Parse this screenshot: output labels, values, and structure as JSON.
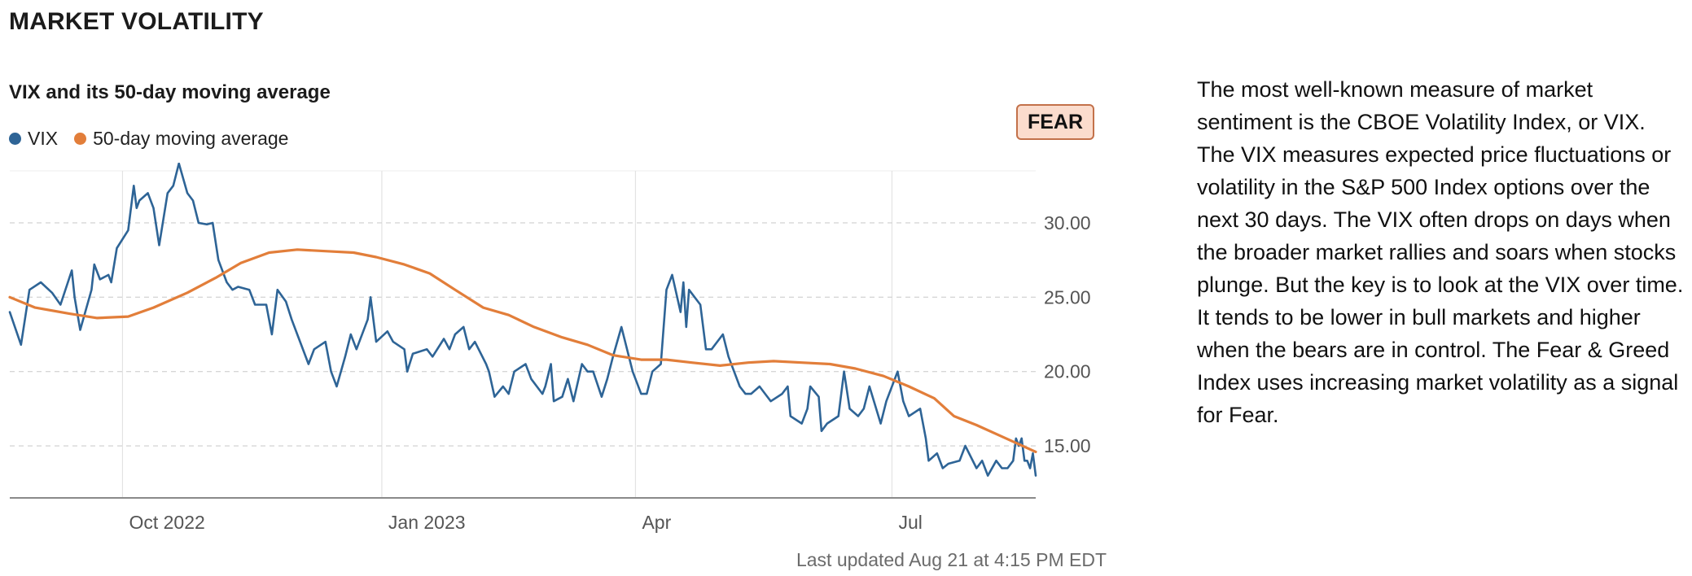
{
  "section_title": "MARKET VOLATILITY",
  "chart_title": "VIX and its 50-day moving average",
  "badge": {
    "label": "FEAR",
    "background": "#fbdccd",
    "border": "#c3714a"
  },
  "last_updated": "Last updated Aug 21 at 4:15 PM EDT",
  "description": "The most well-known measure of market sentiment is the CBOE Volatility Index, or VIX. The VIX measures expected price fluctuations or volatility in the S&P 500 Index options over the next 30 days. The VIX often drops on days when the broader market rallies and soars when stocks plunge. But the key is to look at the VIX over time. It tends to be lower in bull markets and higher when the bears are in control. The Fear & Greed Index uses increasing market volatility as a signal for Fear.",
  "chart_data": {
    "type": "line",
    "title": "VIX and its 50-day moving average",
    "x_range": [
      "2022-08-22",
      "2023-08-21"
    ],
    "ylim": [
      11.5,
      33.5
    ],
    "y_ticks": [
      15,
      20,
      25,
      30
    ],
    "y_tick_labels": [
      "15.00",
      "20.00",
      "25.00",
      "30.00"
    ],
    "x_ticks": [
      {
        "date": "2022-10-01",
        "label": "Oct 2022"
      },
      {
        "date": "2023-01-01",
        "label": "Jan 2023"
      },
      {
        "date": "2023-04-01",
        "label": "Apr"
      },
      {
        "date": "2023-07-01",
        "label": "Jul"
      }
    ],
    "grid": true,
    "legend_position": "top-left",
    "series": [
      {
        "name": "VIX",
        "color": "#2e6496",
        "points": [
          [
            "2022-08-22",
            24.0
          ],
          [
            "2022-08-26",
            21.8
          ],
          [
            "2022-08-29",
            25.5
          ],
          [
            "2022-09-02",
            26.0
          ],
          [
            "2022-09-06",
            25.3
          ],
          [
            "2022-09-09",
            24.5
          ],
          [
            "2022-09-13",
            26.8
          ],
          [
            "2022-09-14",
            25.0
          ],
          [
            "2022-09-16",
            22.8
          ],
          [
            "2022-09-20",
            25.5
          ],
          [
            "2022-09-21",
            27.2
          ],
          [
            "2022-09-23",
            26.2
          ],
          [
            "2022-09-26",
            26.5
          ],
          [
            "2022-09-27",
            26.0
          ],
          [
            "2022-09-29",
            28.3
          ],
          [
            "2022-10-03",
            29.5
          ],
          [
            "2022-10-05",
            32.5
          ],
          [
            "2022-10-06",
            31.0
          ],
          [
            "2022-10-07",
            31.5
          ],
          [
            "2022-10-10",
            32.0
          ],
          [
            "2022-10-12",
            31.0
          ],
          [
            "2022-10-14",
            28.5
          ],
          [
            "2022-10-17",
            32.0
          ],
          [
            "2022-10-19",
            32.5
          ],
          [
            "2022-10-21",
            34.0
          ],
          [
            "2022-10-24",
            32.0
          ],
          [
            "2022-10-26",
            31.5
          ],
          [
            "2022-10-28",
            30.0
          ],
          [
            "2022-10-31",
            29.9
          ],
          [
            "2022-11-02",
            30.0
          ],
          [
            "2022-11-04",
            27.5
          ],
          [
            "2022-11-07",
            26.0
          ],
          [
            "2022-11-09",
            25.5
          ],
          [
            "2022-11-11",
            25.7
          ],
          [
            "2022-11-15",
            25.5
          ],
          [
            "2022-11-17",
            24.5
          ],
          [
            "2022-11-21",
            24.5
          ],
          [
            "2022-11-23",
            22.5
          ],
          [
            "2022-11-25",
            25.5
          ],
          [
            "2022-11-28",
            24.7
          ],
          [
            "2022-11-30",
            23.5
          ],
          [
            "2022-12-02",
            22.5
          ],
          [
            "2022-12-06",
            20.5
          ],
          [
            "2022-12-08",
            21.5
          ],
          [
            "2022-12-12",
            22.0
          ],
          [
            "2022-12-14",
            20.0
          ],
          [
            "2022-12-16",
            19.0
          ],
          [
            "2022-12-19",
            21.0
          ],
          [
            "2022-12-21",
            22.5
          ],
          [
            "2022-12-23",
            21.5
          ],
          [
            "2022-12-27",
            23.5
          ],
          [
            "2022-12-28",
            25.0
          ],
          [
            "2022-12-30",
            22.0
          ],
          [
            "2023-01-03",
            22.7
          ],
          [
            "2023-01-05",
            22.0
          ],
          [
            "2023-01-09",
            21.5
          ],
          [
            "2023-01-10",
            20.0
          ],
          [
            "2023-01-12",
            21.2
          ],
          [
            "2023-01-17",
            21.5
          ],
          [
            "2023-01-19",
            21.0
          ],
          [
            "2023-01-23",
            22.2
          ],
          [
            "2023-01-25",
            21.5
          ],
          [
            "2023-01-27",
            22.5
          ],
          [
            "2023-01-30",
            23.0
          ],
          [
            "2023-02-01",
            21.5
          ],
          [
            "2023-02-03",
            22.0
          ],
          [
            "2023-02-07",
            20.5
          ],
          [
            "2023-02-08",
            20.0
          ],
          [
            "2023-02-10",
            18.3
          ],
          [
            "2023-02-13",
            19.0
          ],
          [
            "2023-02-15",
            18.5
          ],
          [
            "2023-02-17",
            20.0
          ],
          [
            "2023-02-21",
            20.5
          ],
          [
            "2023-02-23",
            19.5
          ],
          [
            "2023-02-27",
            18.5
          ],
          [
            "2023-02-28",
            19.0
          ],
          [
            "2023-03-02",
            20.5
          ],
          [
            "2023-03-03",
            18.0
          ],
          [
            "2023-03-06",
            18.3
          ],
          [
            "2023-03-08",
            19.5
          ],
          [
            "2023-03-10",
            18.0
          ],
          [
            "2023-03-13",
            20.5
          ],
          [
            "2023-03-15",
            20.0
          ],
          [
            "2023-03-17",
            20.0
          ],
          [
            "2023-03-20",
            18.3
          ],
          [
            "2023-03-22",
            19.5
          ],
          [
            "2023-03-24",
            21.0
          ],
          [
            "2023-03-27",
            23.0
          ],
          [
            "2023-03-29",
            21.5
          ],
          [
            "2023-03-31",
            20.0
          ],
          [
            "2023-04-03",
            18.5
          ],
          [
            "2023-04-05",
            18.5
          ],
          [
            "2023-04-07",
            20.0
          ],
          [
            "2023-04-10",
            20.5
          ],
          [
            "2023-04-12",
            25.5
          ],
          [
            "2023-04-14",
            26.5
          ],
          [
            "2023-04-17",
            24.0
          ],
          [
            "2023-04-18",
            26.0
          ],
          [
            "2023-04-19",
            23.0
          ],
          [
            "2023-04-20",
            25.5
          ],
          [
            "2023-04-24",
            24.5
          ],
          [
            "2023-04-26",
            21.5
          ],
          [
            "2023-04-28",
            21.5
          ],
          [
            "2023-05-02",
            22.5
          ],
          [
            "2023-05-04",
            21.0
          ],
          [
            "2023-05-08",
            19.0
          ],
          [
            "2023-05-10",
            18.5
          ],
          [
            "2023-05-12",
            18.5
          ],
          [
            "2023-05-15",
            19.0
          ],
          [
            "2023-05-17",
            18.5
          ],
          [
            "2023-05-19",
            18.0
          ],
          [
            "2023-05-23",
            18.5
          ],
          [
            "2023-05-25",
            19.0
          ],
          [
            "2023-05-26",
            17.0
          ],
          [
            "2023-05-30",
            16.5
          ],
          [
            "2023-06-01",
            17.5
          ],
          [
            "2023-06-02",
            19.0
          ],
          [
            "2023-06-05",
            18.3
          ],
          [
            "2023-06-06",
            16.0
          ],
          [
            "2023-06-08",
            16.5
          ],
          [
            "2023-06-12",
            17.0
          ],
          [
            "2023-06-14",
            20.0
          ],
          [
            "2023-06-16",
            17.5
          ],
          [
            "2023-06-19",
            17.0
          ],
          [
            "2023-06-21",
            17.5
          ],
          [
            "2023-06-23",
            19.0
          ],
          [
            "2023-06-27",
            16.5
          ],
          [
            "2023-06-29",
            18.0
          ],
          [
            "2023-07-03",
            20.0
          ],
          [
            "2023-07-05",
            18.0
          ],
          [
            "2023-07-07",
            17.0
          ],
          [
            "2023-07-11",
            17.5
          ],
          [
            "2023-07-13",
            15.5
          ],
          [
            "2023-07-14",
            14.0
          ],
          [
            "2023-07-17",
            14.5
          ],
          [
            "2023-07-19",
            13.5
          ],
          [
            "2023-07-21",
            13.8
          ],
          [
            "2023-07-25",
            14.0
          ],
          [
            "2023-07-27",
            15.0
          ],
          [
            "2023-07-31",
            13.5
          ],
          [
            "2023-08-02",
            14.0
          ],
          [
            "2023-08-04",
            13.0
          ],
          [
            "2023-08-07",
            14.0
          ],
          [
            "2023-08-09",
            13.5
          ],
          [
            "2023-08-11",
            13.5
          ],
          [
            "2023-08-13",
            14.0
          ],
          [
            "2023-08-14",
            15.5
          ],
          [
            "2023-08-15",
            15.0
          ],
          [
            "2023-08-16",
            15.5
          ],
          [
            "2023-08-17",
            14.0
          ],
          [
            "2023-08-18",
            14.0
          ],
          [
            "2023-08-19",
            13.5
          ],
          [
            "2023-08-20",
            14.5
          ],
          [
            "2023-08-21",
            13.0
          ]
        ]
      },
      {
        "name": "50-day moving average",
        "color": "#e27e3a",
        "points": [
          [
            "2022-08-22",
            25.0
          ],
          [
            "2022-08-31",
            24.3
          ],
          [
            "2022-09-12",
            23.9
          ],
          [
            "2022-09-22",
            23.6
          ],
          [
            "2022-10-03",
            23.7
          ],
          [
            "2022-10-12",
            24.3
          ],
          [
            "2022-10-24",
            25.3
          ],
          [
            "2022-11-03",
            26.3
          ],
          [
            "2022-11-12",
            27.3
          ],
          [
            "2022-11-22",
            28.0
          ],
          [
            "2022-12-02",
            28.2
          ],
          [
            "2022-12-12",
            28.1
          ],
          [
            "2022-12-22",
            28.0
          ],
          [
            "2022-12-30",
            27.7
          ],
          [
            "2023-01-09",
            27.2
          ],
          [
            "2023-01-18",
            26.6
          ],
          [
            "2023-01-27",
            25.5
          ],
          [
            "2023-02-06",
            24.3
          ],
          [
            "2023-02-15",
            23.8
          ],
          [
            "2023-02-24",
            23.0
          ],
          [
            "2023-03-06",
            22.3
          ],
          [
            "2023-03-15",
            21.8
          ],
          [
            "2023-03-24",
            21.1
          ],
          [
            "2023-04-03",
            20.8
          ],
          [
            "2023-04-12",
            20.8
          ],
          [
            "2023-04-21",
            20.6
          ],
          [
            "2023-05-01",
            20.4
          ],
          [
            "2023-05-11",
            20.6
          ],
          [
            "2023-05-20",
            20.7
          ],
          [
            "2023-05-30",
            20.6
          ],
          [
            "2023-06-09",
            20.5
          ],
          [
            "2023-06-18",
            20.2
          ],
          [
            "2023-06-28",
            19.7
          ],
          [
            "2023-07-07",
            19.0
          ],
          [
            "2023-07-16",
            18.2
          ],
          [
            "2023-07-23",
            17.0
          ],
          [
            "2023-07-31",
            16.4
          ],
          [
            "2023-08-07",
            15.8
          ],
          [
            "2023-08-14",
            15.2
          ],
          [
            "2023-08-21",
            14.6
          ]
        ]
      }
    ]
  }
}
